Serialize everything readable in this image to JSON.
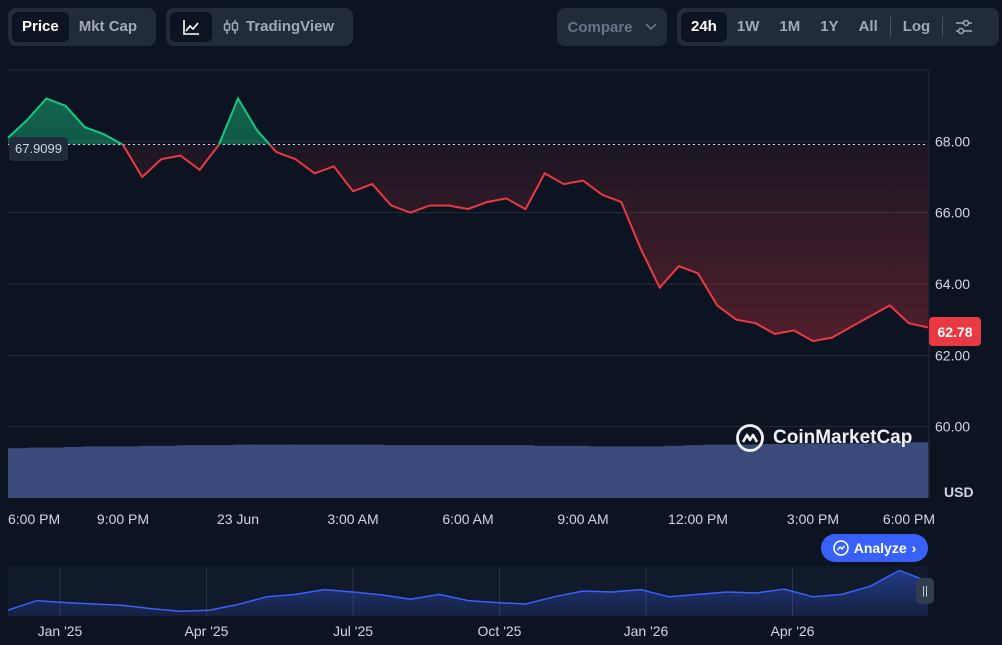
{
  "toolbar": {
    "price_tab": "Price",
    "mktcap_tab": "Mkt Cap",
    "line_icon": "line-chart-icon",
    "tradingview_icon": "candlestick-icon",
    "tradingview_label": "TradingView",
    "compare_label": "Compare",
    "compare_icon": "chevron-down-icon",
    "ranges": [
      "24h",
      "1W",
      "1M",
      "1Y",
      "All"
    ],
    "active_range": "24h",
    "log_label": "Log",
    "settings_icon": "sliders-icon"
  },
  "watermark": {
    "text": "CoinMarketCap",
    "icon": "coinmarketcap-logo-icon"
  },
  "analyze": {
    "label": "Analyze",
    "icon": "analyze-icon",
    "chevron": "›"
  },
  "reference_label": "67.9099",
  "current_price_label": "62.78",
  "nav_handle_icon": "drag-handle-icon",
  "nav_handle_glyph": "||",
  "colors": {
    "up": "#16c784",
    "down": "#ea3943",
    "volume": "#3a4a7a",
    "nav_line": "#3861fb",
    "accent": "#3861fb",
    "background": "#0d1421"
  },
  "chart_data": [
    {
      "type": "line",
      "x_tick_labels": [
        "6:00 PM",
        "9:00 PM",
        "23 Jun",
        "3:00 AM",
        "6:00 AM",
        "9:00 AM",
        "12:00 PM",
        "3:00 PM",
        "6:00 PM"
      ],
      "y_tick_labels": [
        "68.00",
        "66.00",
        "64.00",
        "62.00",
        "60.00"
      ],
      "y_ticks": [
        68,
        66,
        64,
        62,
        60
      ],
      "ylabel": "USD",
      "ylim": [
        58,
        70
      ],
      "x": [
        0,
        0.5,
        1,
        1.5,
        2,
        2.5,
        3,
        3.5,
        4,
        4.5,
        5,
        5.5,
        6,
        6.5,
        7,
        7.5,
        8,
        8.5,
        9,
        9.5,
        10,
        10.5,
        11,
        11.5,
        12,
        12.5,
        13,
        13.5,
        14,
        14.5,
        15,
        15.5,
        16,
        16.5,
        17,
        17.5,
        18,
        18.5,
        19,
        19.5,
        20,
        20.5,
        21,
        21.5,
        22,
        22.5,
        23,
        23.5,
        24
      ],
      "reference_value": 67.9099,
      "current_value": 62.78,
      "series": [
        {
          "values": [
            68.1,
            68.6,
            69.2,
            69.0,
            68.4,
            68.2,
            67.9,
            67.0,
            67.5,
            67.6,
            67.2,
            67.9,
            69.2,
            68.3,
            67.7,
            67.5,
            67.1,
            67.3,
            66.6,
            66.8,
            66.2,
            66.0,
            66.2,
            66.2,
            66.1,
            66.3,
            66.4,
            66.1,
            67.1,
            66.8,
            66.9,
            66.5,
            66.3,
            65.0,
            63.9,
            64.5,
            64.3,
            63.4,
            63.0,
            62.9,
            62.6,
            62.7,
            62.4,
            62.5,
            62.8,
            63.1,
            63.4,
            62.9,
            62.78
          ]
        }
      ],
      "volume": [
        0.83,
        0.84,
        0.84,
        0.85,
        0.86,
        0.86,
        0.86,
        0.87,
        0.87,
        0.88,
        0.88,
        0.88,
        0.89,
        0.89,
        0.89,
        0.89,
        0.89,
        0.89,
        0.89,
        0.89,
        0.88,
        0.88,
        0.88,
        0.88,
        0.88,
        0.88,
        0.88,
        0.88,
        0.87,
        0.87,
        0.87,
        0.86,
        0.86,
        0.86,
        0.86,
        0.87,
        0.88,
        0.89,
        0.89,
        0.89,
        0.9,
        0.9,
        0.91,
        0.91,
        0.91,
        0.91,
        0.92,
        0.93,
        0.93
      ]
    },
    {
      "type": "area",
      "x_tick_labels": [
        "Jan '25",
        "Apr '25",
        "Jul '25",
        "Oct '25",
        "Jan '26",
        "Apr '26"
      ],
      "values": [
        0.12,
        0.32,
        0.28,
        0.25,
        0.22,
        0.15,
        0.1,
        0.12,
        0.24,
        0.4,
        0.45,
        0.55,
        0.5,
        0.44,
        0.35,
        0.45,
        0.32,
        0.28,
        0.25,
        0.4,
        0.52,
        0.5,
        0.55,
        0.4,
        0.45,
        0.5,
        0.48,
        0.56,
        0.4,
        0.45,
        0.62,
        0.95,
        0.72
      ]
    }
  ]
}
